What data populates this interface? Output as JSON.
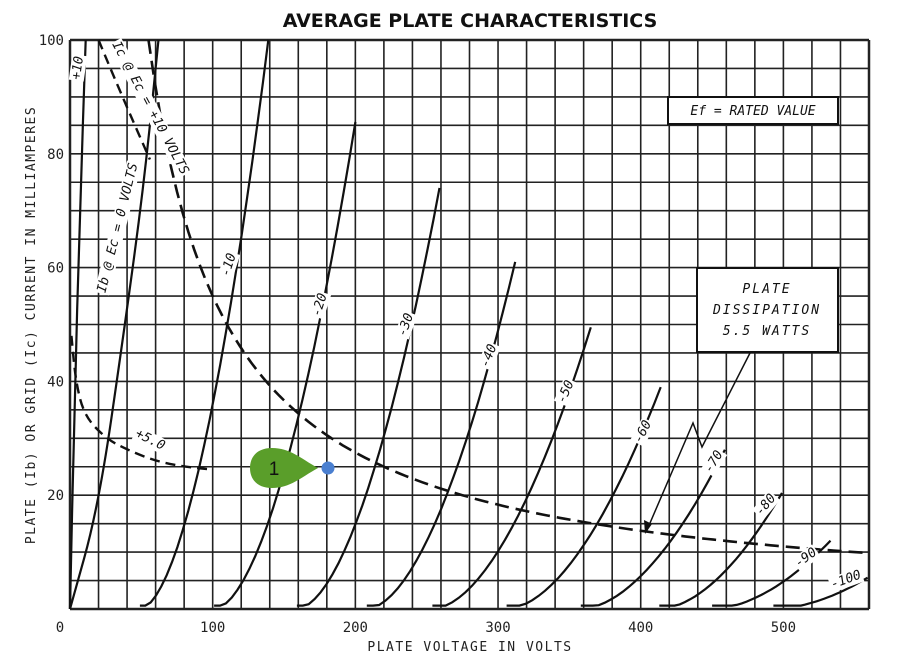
{
  "chart_data": {
    "type": "line",
    "title": "AVERAGE PLATE CHARACTERISTICS",
    "xlabel": "PLATE VOLTAGE IN VOLTS",
    "ylabel": "PLATE (Ib) OR GRID (Ic) CURRENT IN MILLIAMPERES",
    "xlim": [
      0,
      560
    ],
    "ylim": [
      0,
      100
    ],
    "xticks": [
      0,
      100,
      200,
      300,
      400,
      500
    ],
    "yticks": [
      20,
      40,
      60,
      80,
      100
    ],
    "grid": true,
    "grid_x_step": 20,
    "grid_y_step": 5,
    "note": "Ef = RATED VALUE",
    "dissipation_box": [
      "PLATE",
      "DISSIPATION",
      "5.5 WATTS"
    ],
    "plate_dissipation_watts": 5.5,
    "plate_current_curves": [
      {
        "label": "+10",
        "points": [
          [
            0,
            0
          ],
          [
            3,
            35
          ],
          [
            7,
            70
          ],
          [
            11,
            100
          ]
        ]
      },
      {
        "label": "Ib @ Ec = 0 VOLTS",
        "points": [
          [
            0,
            0
          ],
          [
            20,
            18
          ],
          [
            38,
            49
          ],
          [
            52,
            75
          ],
          [
            62,
            100
          ]
        ]
      },
      {
        "label": "-10",
        "start": 49,
        "end": [
          139,
          100
        ]
      },
      {
        "label": "-20",
        "start": 101,
        "end": [
          200,
          85.6
        ]
      },
      {
        "label": "-30",
        "start": 159,
        "end": [
          259,
          74
        ]
      },
      {
        "label": "-40",
        "start": 208,
        "end": [
          312,
          61
        ]
      },
      {
        "label": "-50",
        "start": 254,
        "end": [
          365,
          49.5
        ]
      },
      {
        "label": "-60",
        "start": 306,
        "end": [
          414,
          39
        ]
      },
      {
        "label": "-70",
        "start": 358,
        "end": [
          459,
          28
        ]
      },
      {
        "label": "-80",
        "start": 413,
        "end": [
          499,
          20.4
        ]
      },
      {
        "label": "-90",
        "start": 450,
        "end": [
          533,
          12
        ]
      },
      {
        "label": "-100",
        "start": 493,
        "end": [
          559,
          5.5
        ]
      }
    ],
    "grid_current_curves": [
      {
        "label": "Ic @ Ec = +10 VOLTS",
        "points": [
          [
            20,
            100
          ],
          [
            30,
            94
          ],
          [
            42,
            87
          ],
          [
            56,
            79
          ]
        ]
      },
      {
        "label": "+5.0",
        "points": [
          [
            1,
            48
          ],
          [
            4,
            40
          ],
          [
            10,
            34
          ],
          [
            25,
            30
          ],
          [
            40,
            28
          ],
          [
            60,
            26
          ],
          [
            80,
            25
          ],
          [
            100,
            24.5
          ]
        ]
      }
    ],
    "annotation": {
      "label": "1",
      "point": [
        181,
        25
      ],
      "color": "#5a9e2a",
      "dot_color": "#4a7fd0"
    }
  }
}
